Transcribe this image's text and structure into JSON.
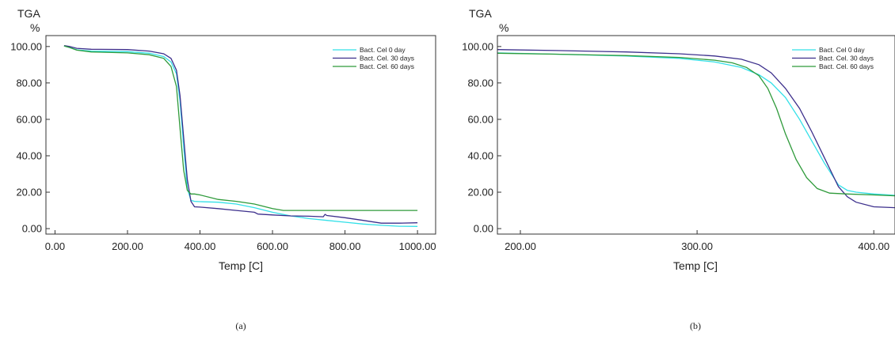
{
  "chart_data": [
    {
      "type": "line",
      "caption": "(a)",
      "ylabel_top": "TGA",
      "ylabel_unit": "%",
      "xlabel": "Temp  [C]",
      "xlim": [
        -25,
        1050
      ],
      "ylim": [
        -3,
        106
      ],
      "xticks": [
        "0.00",
        "200.00",
        "400.00",
        "600.00",
        "800.00",
        "1000.00"
      ],
      "xtick_values": [
        0,
        200,
        400,
        600,
        800,
        1000
      ],
      "yticks": [
        "0.00",
        "20.00",
        "40.00",
        "60.00",
        "80.00",
        "100.00"
      ],
      "ytick_values": [
        0,
        20,
        40,
        60,
        80,
        100
      ],
      "legend_position": "top-right",
      "series": [
        {
          "name": "Bact. Cel 0 day",
          "color": "#33e0e8",
          "x": [
            25,
            40,
            60,
            100,
            200,
            260,
            300,
            320,
            335,
            345,
            355,
            365,
            375,
            385,
            400,
            450,
            500,
            550,
            600,
            650,
            700,
            750,
            800,
            850,
            900,
            950,
            1000
          ],
          "y": [
            100.3,
            99.5,
            98.2,
            97.5,
            97.2,
            96.3,
            94.5,
            91.5,
            85,
            70,
            45,
            22,
            15.5,
            15,
            14.8,
            14.5,
            13.5,
            11.5,
            9,
            7,
            5.5,
            4.5,
            3.5,
            2.5,
            1.8,
            1.3,
            1.2
          ]
        },
        {
          "name": "Bact. Cel. 30 days",
          "color": "#3c2f8c",
          "x": [
            25,
            40,
            60,
            100,
            200,
            260,
            300,
            320,
            335,
            345,
            355,
            365,
            375,
            385,
            400,
            450,
            500,
            550,
            560,
            600,
            650,
            700,
            740,
            745,
            750,
            800,
            850,
            900,
            950,
            1000
          ],
          "y": [
            100.5,
            100,
            99,
            98.5,
            98.3,
            97.5,
            96,
            93.5,
            87,
            73,
            50,
            27,
            15,
            12,
            11.8,
            11,
            10,
            9,
            8,
            7.5,
            7,
            6.8,
            6.5,
            7.8,
            7.2,
            6,
            4.5,
            3,
            3,
            3.2
          ]
        },
        {
          "name": "Bact. Cel. 60 days",
          "color": "#2e9a3a",
          "x": [
            25,
            40,
            60,
            100,
            200,
            260,
            300,
            320,
            335,
            345,
            355,
            365,
            375,
            385,
            400,
            450,
            500,
            550,
            600,
            630,
            650,
            700,
            800,
            900,
            1000
          ],
          "y": [
            100.3,
            99.5,
            98,
            97,
            96.5,
            95.5,
            93.5,
            89,
            78,
            55,
            32,
            21,
            19,
            19,
            18.5,
            16,
            15,
            13.5,
            11,
            10,
            10,
            10,
            10,
            10,
            10
          ]
        }
      ]
    },
    {
      "type": "line",
      "caption": "(b)",
      "ylabel_top": "TGA",
      "ylabel_unit": "%",
      "xlabel": "Temp  [C]",
      "xlim": [
        187,
        412
      ],
      "ylim": [
        -3,
        106
      ],
      "xticks": [
        "200.00",
        "300.00",
        "400.00"
      ],
      "xtick_values": [
        200,
        300,
        400
      ],
      "yticks": [
        "0.00",
        "20.00",
        "40.00",
        "60.00",
        "80.00",
        "100.00"
      ],
      "ytick_values": [
        0,
        20,
        40,
        60,
        80,
        100
      ],
      "legend_position": "top-right",
      "series": [
        {
          "name": "Bact. Cel 0 day",
          "color": "#33e0e8",
          "x": [
            187,
            220,
            260,
            290,
            310,
            325,
            335,
            342,
            350,
            358,
            365,
            372,
            380,
            385,
            390,
            400,
            412
          ],
          "y": [
            96.5,
            95.8,
            94.8,
            93.5,
            91.5,
            88.5,
            84.5,
            80,
            72,
            60,
            48,
            36,
            24,
            21,
            20,
            19,
            18.3
          ]
        },
        {
          "name": "Bact. Cel. 30 days",
          "color": "#3c2f8c",
          "x": [
            187,
            220,
            260,
            290,
            310,
            325,
            335,
            342,
            350,
            358,
            365,
            372,
            380,
            385,
            390,
            400,
            412
          ],
          "y": [
            98.3,
            97.8,
            97,
            96,
            94.8,
            93,
            90,
            85.5,
            77,
            66,
            53,
            39,
            23,
            17.5,
            14.5,
            12,
            11.5
          ]
        },
        {
          "name": "Bact. Cel. 60 days",
          "color": "#2e9a3a",
          "x": [
            187,
            220,
            260,
            290,
            310,
            320,
            328,
            335,
            340,
            345,
            350,
            356,
            362,
            368,
            375,
            385,
            400,
            412
          ],
          "y": [
            96.3,
            95.8,
            95,
            94,
            92.5,
            91,
            88.5,
            84,
            77,
            66,
            52,
            38,
            28,
            22,
            19.5,
            19,
            18.5,
            18
          ]
        }
      ]
    }
  ]
}
